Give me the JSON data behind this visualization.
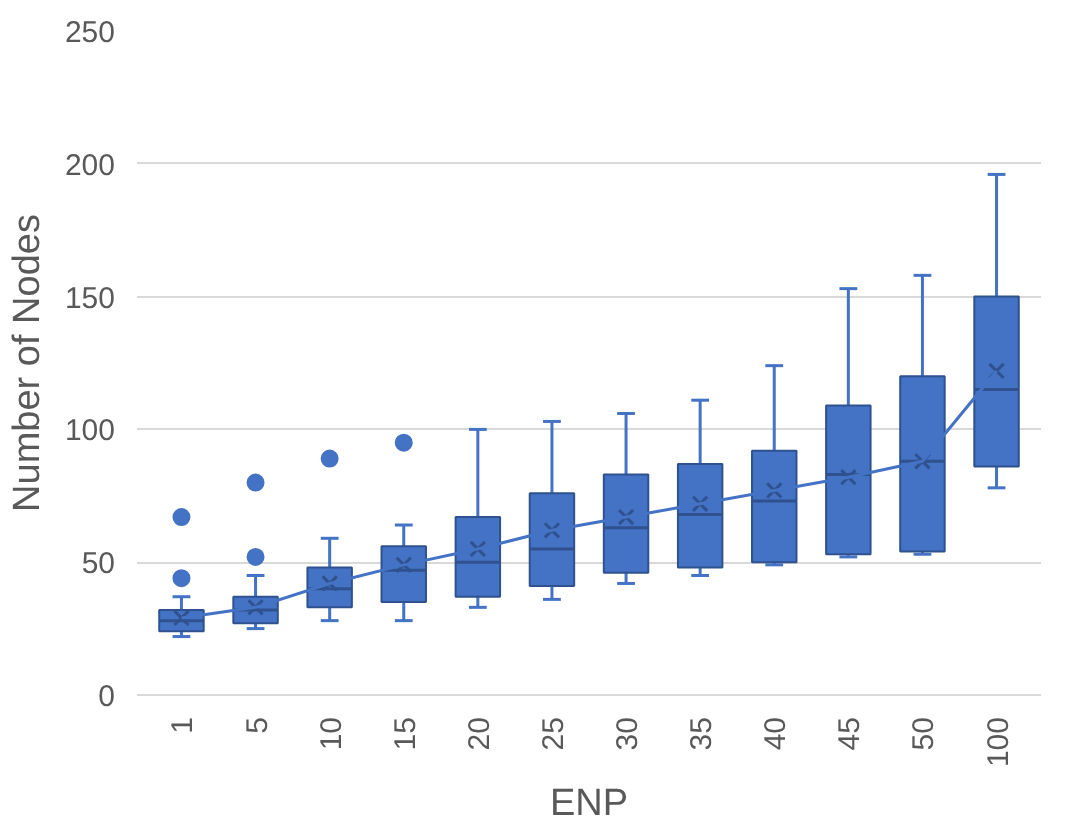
{
  "chart_data": {
    "type": "box",
    "xlabel": "ENP",
    "ylabel": "Number of Nodes",
    "categories": [
      "1",
      "5",
      "10",
      "15",
      "20",
      "25",
      "30",
      "35",
      "40",
      "45",
      "50",
      "100"
    ],
    "color": "#4472c4",
    "boxes": [
      {
        "low": 22,
        "q1": 24,
        "median": 28,
        "q3": 32,
        "high": 37,
        "mean": 29,
        "outliers": [
          44,
          67
        ]
      },
      {
        "low": 25,
        "q1": 27,
        "median": 32,
        "q3": 37,
        "high": 45,
        "mean": 33,
        "outliers": [
          52,
          80
        ]
      },
      {
        "low": 28,
        "q1": 33,
        "median": 40,
        "q3": 48,
        "high": 59,
        "mean": 42,
        "outliers": [
          89
        ]
      },
      {
        "low": 28,
        "q1": 35,
        "median": 47,
        "q3": 56,
        "high": 64,
        "mean": 49,
        "outliers": [
          95
        ]
      },
      {
        "low": 33,
        "q1": 37,
        "median": 50,
        "q3": 67,
        "high": 100,
        "mean": 55
      },
      {
        "low": 36,
        "q1": 41,
        "median": 55,
        "q3": 76,
        "high": 103,
        "mean": 62
      },
      {
        "low": 42,
        "q1": 46,
        "median": 63,
        "q3": 83,
        "high": 106,
        "mean": 67
      },
      {
        "low": 45,
        "q1": 48,
        "median": 68,
        "q3": 87,
        "high": 111,
        "mean": 72
      },
      {
        "low": 49,
        "q1": 50,
        "median": 73,
        "q3": 92,
        "high": 124,
        "mean": 77
      },
      {
        "low": 52,
        "q1": 53,
        "median": 83,
        "q3": 109,
        "high": 153,
        "mean": 82
      },
      {
        "low": 53,
        "q1": 54,
        "median": 88,
        "q3": 120,
        "high": 158,
        "mean": 88
      },
      {
        "low": 78,
        "q1": 86,
        "median": 115,
        "q3": 150,
        "high": 196,
        "mean": 122
      }
    ],
    "series": [
      {
        "type": "line",
        "color": "#4472c4",
        "values": [
          29,
          33,
          42,
          49,
          55,
          62,
          67,
          72,
          77,
          82,
          88,
          122
        ]
      }
    ],
    "ylim": [
      0,
      250
    ],
    "yticks": [
      0,
      50,
      100,
      150,
      200,
      250
    ],
    "grid": "y"
  }
}
